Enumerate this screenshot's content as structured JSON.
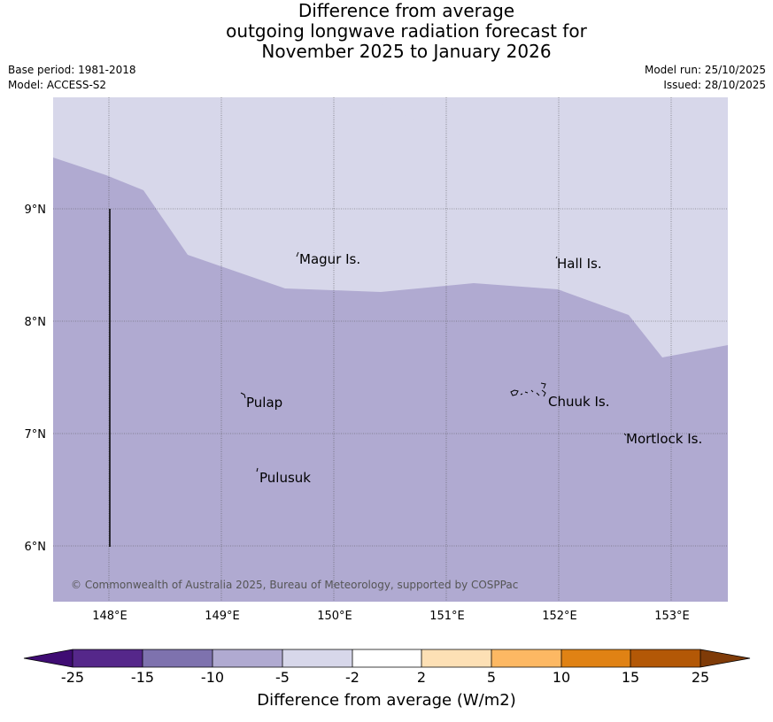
{
  "title": {
    "line1": "Difference from average",
    "line2": "outgoing longwave radiation forecast for",
    "line3": "November 2025 to January 2026"
  },
  "meta": {
    "base_period": "Base period: 1981-2018",
    "model": "Model: ACCESS-S2",
    "model_run": "Model run: 25/10/2025",
    "issued": "Issued: 28/10/2025"
  },
  "map": {
    "lon_range": [
      147.5,
      153.5
    ],
    "lat_range": [
      5.5,
      10.0
    ],
    "lon_ticks": [
      "148°E",
      "149°E",
      "150°E",
      "151°E",
      "152°E",
      "153°E"
    ],
    "lat_ticks": [
      "9°N",
      "8°N",
      "7°N",
      "6°N"
    ],
    "places": [
      "Magur Is.",
      "Hall Is.",
      "Pulap",
      "Chuuk Is.",
      "Mortlock Is.",
      "Pulusuk"
    ],
    "copyright": "© Commonwealth of Australia 2025, Bureau of Meteorology, supported by COSPPac",
    "region_colors": {
      "minus10_to_minus5": "#b0aad1",
      "minus5_to_minus2": "#d7d7ea"
    }
  },
  "colorbar": {
    "ticks": [
      "-25",
      "-15",
      "-10",
      "-5",
      "-2",
      "2",
      "5",
      "10",
      "15",
      "25"
    ],
    "colors": [
      "#3f0c73",
      "#55278a",
      "#7e72ae",
      "#b0aad1",
      "#d7d7ea",
      "#ffffff",
      "#fde0b5",
      "#fdb863",
      "#e08214",
      "#b35806",
      "#7f3b08"
    ],
    "label": "Difference from average (W/m2)"
  }
}
